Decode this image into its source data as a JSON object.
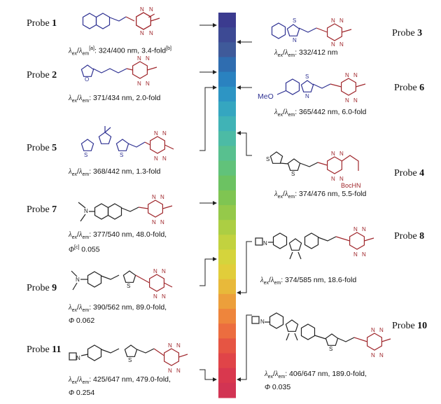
{
  "probes": [
    {
      "id": "1",
      "label_prefix": "Probe ",
      "number": "1",
      "caption_main": ": 324/400 nm, 3.4-fold",
      "caption_sup1": "[a]",
      "caption_sup2": "[b]"
    },
    {
      "id": "2",
      "label_prefix": "Probe ",
      "number": "2",
      "caption_main": ": 371/434 nm, 2.0-fold"
    },
    {
      "id": "3",
      "label_prefix": "Probe ",
      "number": "3",
      "caption_main": ": 332/412 nm"
    },
    {
      "id": "4",
      "label_prefix": "Probe ",
      "number": "4",
      "caption_main": ": 374/476 nm, 5.5-fold"
    },
    {
      "id": "5",
      "label_prefix": "Probe ",
      "number": "5",
      "caption_main": ": 368/442 nm, 1.3-fold"
    },
    {
      "id": "6",
      "label_prefix": "Probe ",
      "number": "6",
      "caption_main": ": 365/442 nm, 6.0-fold"
    },
    {
      "id": "7",
      "label_prefix": "Probe ",
      "number": "7",
      "caption_main": ": 377/540 nm, 48.0-fold,",
      "caption_line2_phi": "Φ",
      "caption_line2_sup": "[c]",
      "caption_line2_val": " 0.055"
    },
    {
      "id": "8",
      "label_prefix": "Probe ",
      "number": "8",
      "caption_main": ": 374/585 nm, 18.6-fold"
    },
    {
      "id": "9",
      "label_prefix": "Probe ",
      "number": "9",
      "caption_main": ": 390/562 nm, 89.0-fold,",
      "caption_line2_phi": "Φ",
      "caption_line2_val": " 0.062"
    },
    {
      "id": "10",
      "label_prefix": "Probe ",
      "number": "10",
      "caption_main": ": 406/647 nm, 189.0-fold,",
      "caption_line2_phi": "Φ",
      "caption_line2_val": " 0.035"
    },
    {
      "id": "11",
      "label_prefix": "Probe ",
      "number": "11",
      "caption_main": ": 425/647 nm, 479.0-fold,",
      "caption_line2_phi": "Φ",
      "caption_line2_val": " 0.254"
    }
  ],
  "lambda_symbol": "λ",
  "ex_sub": "ex",
  "em_sub": "em",
  "slash": "/",
  "atoms": {
    "N": "N",
    "S": "S",
    "O": "O",
    "MeO": "MeO",
    "BocHN": "BocHN"
  },
  "spectrum_colors": [
    "#3b3b8f",
    "#3d4a94",
    "#3f5a9a",
    "#2f6db0",
    "#2a82c0",
    "#2d95c4",
    "#35a6c0",
    "#40b3b6",
    "#4cbba5",
    "#58c08f",
    "#61c27a",
    "#6cc262",
    "#7fc552",
    "#95c94a",
    "#acce43",
    "#c2d23f",
    "#d5d43c",
    "#e1cd3a",
    "#e8b93a",
    "#ec9f3b",
    "#ee853c",
    "#ec6d3f",
    "#e65543",
    "#e04448",
    "#d9384e",
    "#d23453"
  ]
}
